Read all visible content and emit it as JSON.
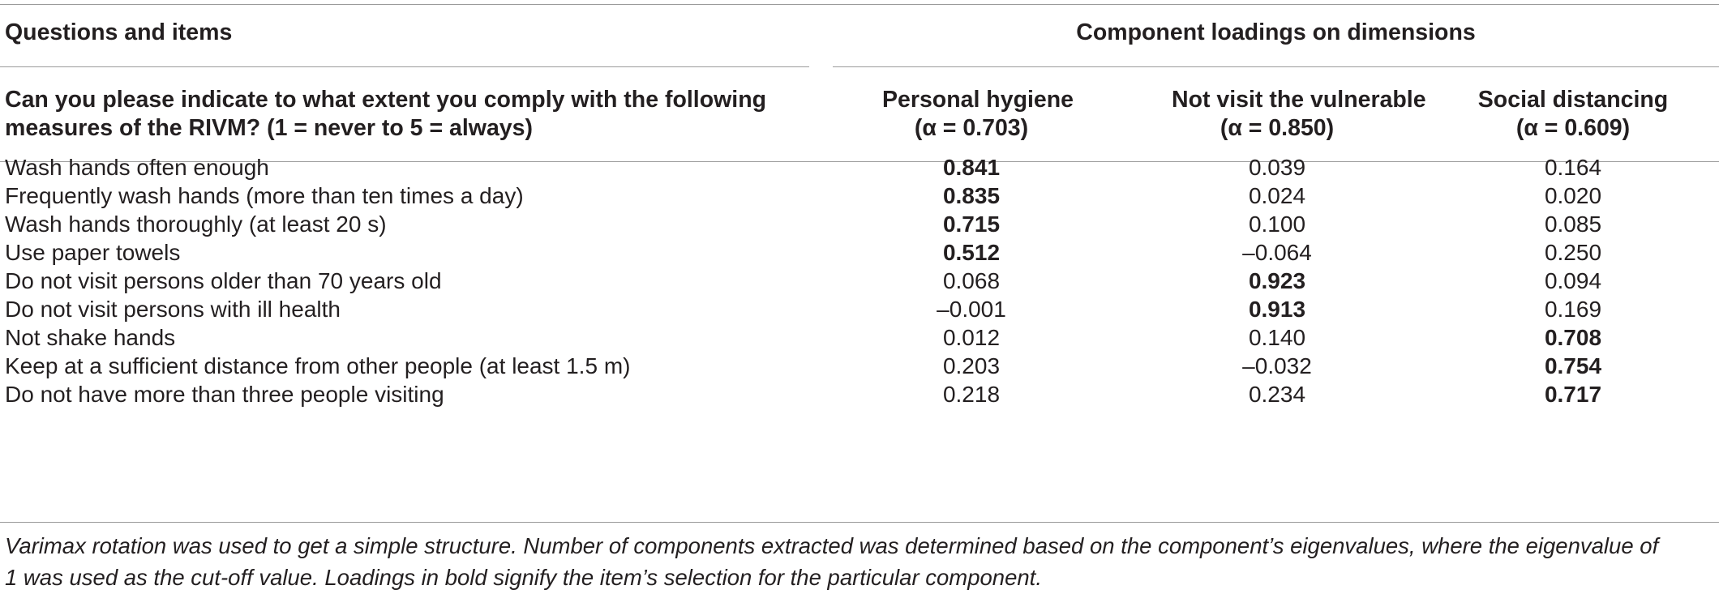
{
  "header": {
    "col0": "Questions and items",
    "group": "Component loadings on dimensions",
    "question_line1": "Can you please indicate to what extent you comply with the following",
    "question_line2": "measures of the RIVM? (1 = never to 5 = always)",
    "dims": [
      {
        "name": "Personal hygiene",
        "alpha": "(α = 0.703)"
      },
      {
        "name": "Not visit the vulnerable",
        "alpha": "(α = 0.850)"
      },
      {
        "name": "Social distancing",
        "alpha": "(α = 0.609)"
      }
    ]
  },
  "rows": [
    {
      "item": "Wash hands often enough",
      "v": [
        "0.841",
        "0.039",
        "0.164"
      ]
    },
    {
      "item": "Frequently wash hands (more than ten times a day)",
      "v": [
        "0.835",
        "0.024",
        "0.020"
      ]
    },
    {
      "item": "Wash hands thoroughly (at least 20 s)",
      "v": [
        "0.715",
        "0.100",
        "0.085"
      ]
    },
    {
      "item": "Use paper towels",
      "v": [
        "0.512",
        "–0.064",
        "0.250"
      ]
    },
    {
      "item": "Do not visit persons older than 70 years old",
      "v": [
        "0.068",
        "0.923",
        "0.094"
      ]
    },
    {
      "item": "Do not visit persons with ill health",
      "v": [
        "–0.001",
        "0.913",
        "0.169"
      ]
    },
    {
      "item": "Not shake hands",
      "v": [
        "0.012",
        "0.140",
        "0.708"
      ]
    },
    {
      "item": "Keep at a sufficient distance from other people (at least 1.5 m)",
      "v": [
        "0.203",
        "–0.032",
        "0.754"
      ]
    },
    {
      "item": "Do not have more than three people visiting",
      "v": [
        "0.218",
        "0.234",
        "0.717"
      ]
    }
  ],
  "bold_column_per_row": [
    0,
    0,
    0,
    0,
    1,
    1,
    2,
    2,
    2
  ],
  "footnote_line1": "Varimax rotation was used to get a simple structure. Number of components extracted was determined based on the component’s eigenvalues, where the eigenvalue of",
  "footnote_line2": "1 was used as the cut-off value. Loadings in bold signify the item’s selection for the particular component."
}
